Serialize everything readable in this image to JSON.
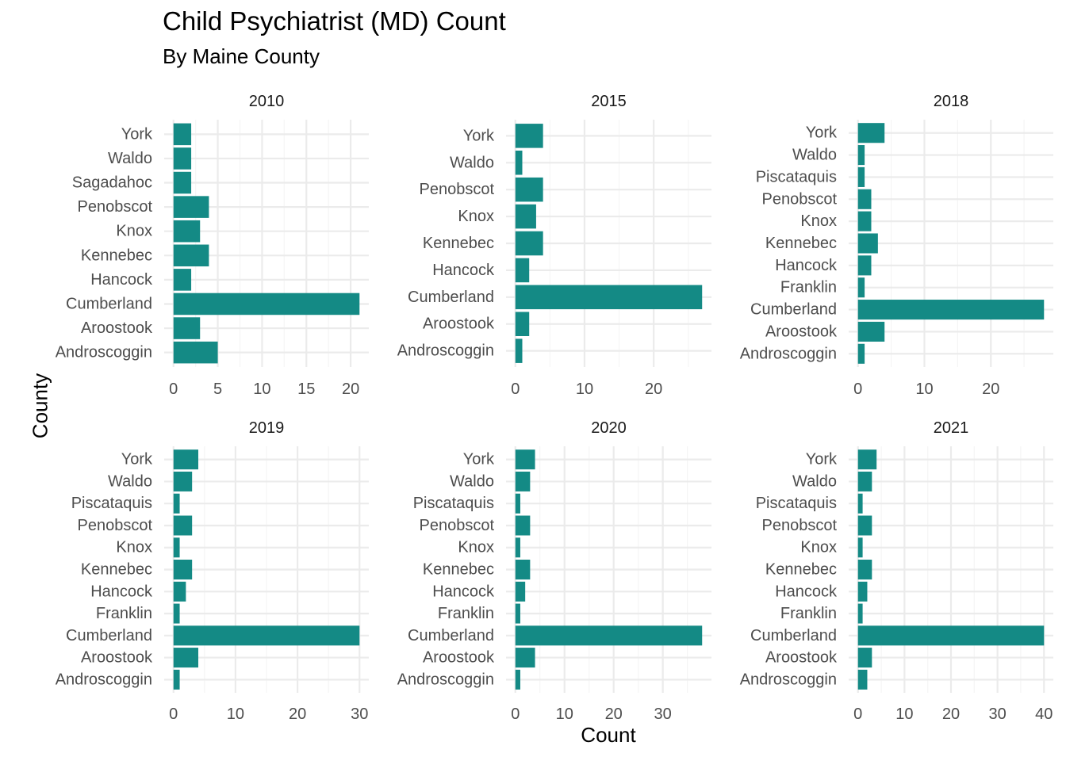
{
  "title": "Child Psychiatrist (MD) Count",
  "subtitle": "By Maine County",
  "xlabel": "Count",
  "ylabel": "County",
  "colors": {
    "bar": "#148a85",
    "grid_major": "#ebebeb",
    "grid_minor": "#f5f5f5"
  },
  "chart_data": [
    {
      "type": "bar",
      "orientation": "horizontal",
      "panel": "2010",
      "categories": [
        "Androscoggin",
        "Aroostook",
        "Cumberland",
        "Hancock",
        "Kennebec",
        "Knox",
        "Penobscot",
        "Sagadahoc",
        "Waldo",
        "York"
      ],
      "values": [
        5,
        3,
        21,
        2,
        4,
        3,
        4,
        2,
        2,
        2
      ],
      "xlim": [
        0,
        21
      ],
      "xticks": [
        "0",
        "5",
        "10",
        "15",
        "20"
      ],
      "xtick_values": [
        0,
        5,
        10,
        15,
        20
      ]
    },
    {
      "type": "bar",
      "orientation": "horizontal",
      "panel": "2015",
      "categories": [
        "Androscoggin",
        "Aroostook",
        "Cumberland",
        "Hancock",
        "Kennebec",
        "Knox",
        "Penobscot",
        "Waldo",
        "York"
      ],
      "values": [
        1,
        2,
        27,
        2,
        4,
        3,
        4,
        1,
        4
      ],
      "xlim": [
        0,
        27
      ],
      "xticks": [
        "0",
        "10",
        "20"
      ],
      "xtick_values": [
        0,
        10,
        20
      ]
    },
    {
      "type": "bar",
      "orientation": "horizontal",
      "panel": "2018",
      "categories": [
        "Androscoggin",
        "Aroostook",
        "Cumberland",
        "Franklin",
        "Hancock",
        "Kennebec",
        "Knox",
        "Penobscot",
        "Piscataquis",
        "Waldo",
        "York"
      ],
      "values": [
        1,
        4,
        28,
        1,
        2,
        3,
        2,
        2,
        1,
        1,
        4
      ],
      "xlim": [
        0,
        28
      ],
      "xticks": [
        "0",
        "10",
        "20"
      ],
      "xtick_values": [
        0,
        10,
        20
      ]
    },
    {
      "type": "bar",
      "orientation": "horizontal",
      "panel": "2019",
      "categories": [
        "Androscoggin",
        "Aroostook",
        "Cumberland",
        "Franklin",
        "Hancock",
        "Kennebec",
        "Knox",
        "Penobscot",
        "Piscataquis",
        "Waldo",
        "York"
      ],
      "values": [
        1,
        4,
        30,
        1,
        2,
        3,
        1,
        3,
        1,
        3,
        4
      ],
      "xlim": [
        0,
        30
      ],
      "xticks": [
        "0",
        "10",
        "20",
        "30"
      ],
      "xtick_values": [
        0,
        10,
        20,
        30
      ]
    },
    {
      "type": "bar",
      "orientation": "horizontal",
      "panel": "2020",
      "categories": [
        "Androscoggin",
        "Aroostook",
        "Cumberland",
        "Franklin",
        "Hancock",
        "Kennebec",
        "Knox",
        "Penobscot",
        "Piscataquis",
        "Waldo",
        "York"
      ],
      "values": [
        1,
        4,
        38,
        1,
        2,
        3,
        1,
        3,
        1,
        3,
        4
      ],
      "xlim": [
        0,
        38
      ],
      "xticks": [
        "0",
        "10",
        "20",
        "30"
      ],
      "xtick_values": [
        0,
        10,
        20,
        30
      ]
    },
    {
      "type": "bar",
      "orientation": "horizontal",
      "panel": "2021",
      "categories": [
        "Androscoggin",
        "Aroostook",
        "Cumberland",
        "Franklin",
        "Hancock",
        "Kennebec",
        "Knox",
        "Penobscot",
        "Piscataquis",
        "Waldo",
        "York"
      ],
      "values": [
        2,
        3,
        40,
        1,
        2,
        3,
        1,
        3,
        1,
        3,
        4
      ],
      "xlim": [
        0,
        40
      ],
      "xticks": [
        "0",
        "10",
        "20",
        "30",
        "40"
      ],
      "xtick_values": [
        0,
        10,
        20,
        30,
        40
      ]
    }
  ]
}
